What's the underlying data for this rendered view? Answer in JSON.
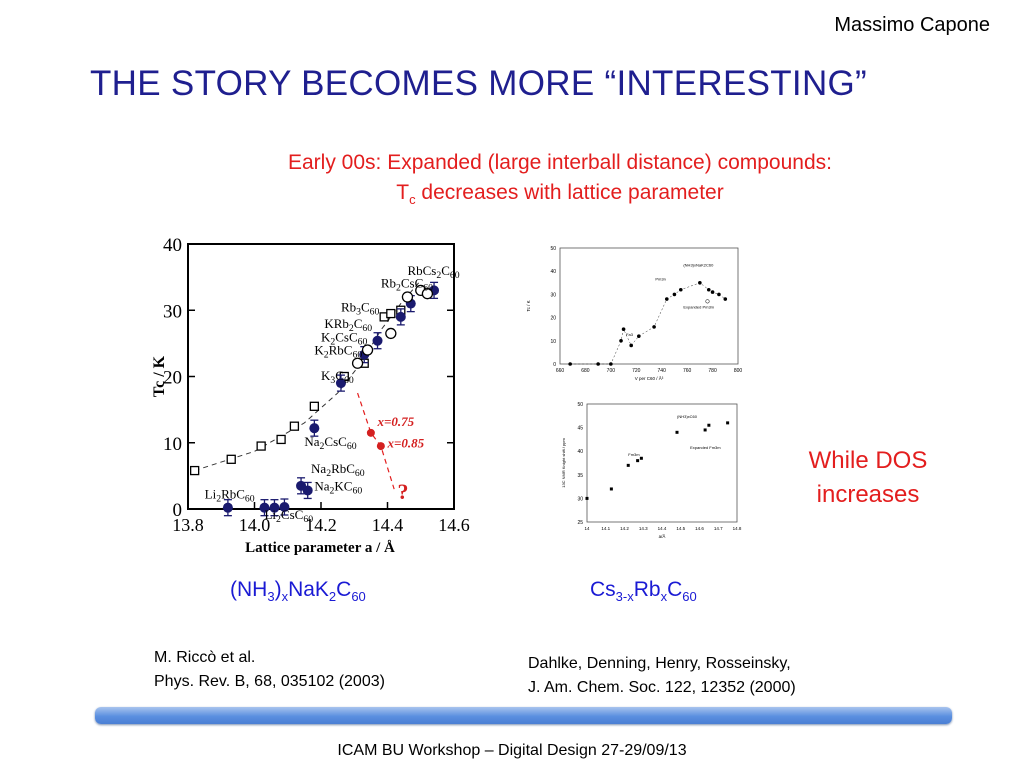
{
  "header": {
    "author": "Massimo Capone",
    "title": "THE STORY BECOMES MORE “INTERESTING”",
    "subtitle_line1": "Early 00s: Expanded (large interball distance) compounds:",
    "subtitle_tc": "T",
    "subtitle_tc_sub": "c",
    "subtitle_rest": " decreases with lattice parameter"
  },
  "side_note": {
    "line1": "While DOS",
    "line2": "increases"
  },
  "formulas": {
    "left": {
      "p1": "(NH",
      "s1": "3",
      "p2": ")",
      "s2": "x",
      "p3": "NaK",
      "s3": "2",
      "p4": "C",
      "s4": "60"
    },
    "right": {
      "p1": "Cs",
      "s1": "3-x",
      "p2": "Rb",
      "s2": "x",
      "p3": "C",
      "s3": "60"
    }
  },
  "references": {
    "left": {
      "line1": "M. Riccò et al.",
      "line2": "Phys. Rev. B, 68, 035102 (2003)"
    },
    "right": {
      "line1": "Dahlke, Denning, Henry, Rosseinsky,",
      "line2": "J. Am. Chem. Soc. 122, 12352 (2000)"
    }
  },
  "footer": {
    "text": "ICAM BU Workshop – Digital Design 27-29/09/13"
  },
  "colors": {
    "title": "#1f1f8f",
    "accent_red": "#e31e1e",
    "formula_blue": "#1a1ad4",
    "marker_navy": "#1a1a6e"
  },
  "chart_data": [
    {
      "type": "scatter",
      "title": "",
      "xlabel": "Lattice parameter  a / Å",
      "ylabel": "Tc / K",
      "xlim": [
        13.8,
        14.6
      ],
      "ylim": [
        0,
        40
      ],
      "xticks": [
        "13.8",
        "14.0",
        "14.2",
        "14.4",
        "14.6"
      ],
      "yticks": [
        "0",
        "10",
        "20",
        "30",
        "40"
      ],
      "grid": false,
      "series": [
        {
          "marker": "open-square",
          "points": [
            [
              13.82,
              5.8
            ],
            [
              13.93,
              7.5
            ],
            [
              14.02,
              9.5
            ],
            [
              14.08,
              10.5
            ],
            [
              14.12,
              12.5
            ],
            [
              14.18,
              15.5
            ],
            [
              14.27,
              20
            ],
            [
              14.33,
              22
            ],
            [
              14.39,
              29
            ],
            [
              14.41,
              29.5
            ],
            [
              14.44,
              30
            ]
          ]
        },
        {
          "marker": "navy-filled-circle-errorbar",
          "points": [
            [
              13.92,
              0.2
            ],
            [
              14.03,
              0.2
            ],
            [
              14.06,
              0.2
            ],
            [
              14.09,
              0.3
            ],
            [
              14.14,
              3.5
            ],
            [
              14.16,
              2.8
            ],
            [
              14.18,
              12.2
            ],
            [
              14.26,
              19
            ],
            [
              14.33,
              23.3
            ],
            [
              14.37,
              25.4
            ],
            [
              14.44,
              29
            ],
            [
              14.47,
              31
            ],
            [
              14.54,
              33
            ]
          ]
        },
        {
          "marker": "open-circle",
          "points": [
            [
              14.31,
              22
            ],
            [
              14.34,
              24
            ],
            [
              14.41,
              26.5
            ],
            [
              14.46,
              32
            ],
            [
              14.5,
              33
            ],
            [
              14.52,
              32.5
            ]
          ]
        },
        {
          "marker": "red-filled-circle",
          "points": [
            [
              14.35,
              11.5
            ],
            [
              14.38,
              9.5
            ]
          ]
        }
      ],
      "annotations": [
        {
          "text": "Li2RbC60",
          "x": 13.85,
          "y": 1.6
        },
        {
          "text": "Li2CsC60",
          "x": 14.03,
          "y": -1.5
        },
        {
          "text": "Na2KC60",
          "x": 14.18,
          "y": 2.8
        },
        {
          "text": "Na2RbC60",
          "x": 14.17,
          "y": 5.4
        },
        {
          "text": "Na2CsC60",
          "x": 14.15,
          "y": 9.5
        },
        {
          "text": "K3C60",
          "x": 14.2,
          "y": 19.5
        },
        {
          "text": "K2RbC60",
          "x": 14.18,
          "y": 23.3
        },
        {
          "text": "K2CsC60",
          "x": 14.2,
          "y": 25.3
        },
        {
          "text": "KRb2C60",
          "x": 14.21,
          "y": 27.3
        },
        {
          "text": "Rb3C60",
          "x": 14.26,
          "y": 29.8
        },
        {
          "text": "Rb2CsC60",
          "x": 14.38,
          "y": 33.4
        },
        {
          "text": "RbCs2C60",
          "x": 14.46,
          "y": 35.3
        },
        {
          "text": "x=0.75",
          "x": 14.37,
          "y": 12.5
        },
        {
          "text": "x=0.85",
          "x": 14.4,
          "y": 9.3
        },
        {
          "text": "?",
          "x": 14.43,
          "y": 1.5
        }
      ]
    },
    {
      "type": "scatter",
      "title": "",
      "xlabel": "V per C60 / Å³",
      "ylabel": "Tc / K",
      "xlim": [
        660,
        800
      ],
      "ylim": [
        0,
        50
      ],
      "xticks": [
        "660",
        "680",
        "700",
        "720",
        "740",
        "760",
        "780",
        "800"
      ],
      "yticks": [
        "0",
        "10",
        "20",
        "30",
        "40",
        "50"
      ],
      "series": [
        {
          "marker": "filled-circle",
          "points": [
            [
              668,
              0
            ],
            [
              690,
              0
            ],
            [
              700,
              0
            ],
            [
              708,
              10
            ],
            [
              710,
              15
            ],
            [
              716,
              8
            ],
            [
              722,
              12
            ],
            [
              734,
              16
            ],
            [
              744,
              28
            ],
            [
              750,
              30
            ],
            [
              755,
              32
            ],
            [
              770,
              35
            ],
            [
              777,
              32
            ],
            [
              780,
              31
            ],
            [
              785,
              30
            ],
            [
              790,
              28
            ]
          ]
        },
        {
          "marker": "open-circle",
          "points": [
            [
              776,
              27
            ]
          ]
        }
      ],
      "annotations": [
        {
          "text": "Pm3n"
        },
        {
          "text": "Fa3"
        },
        {
          "text": "Expanded Pm3m"
        },
        {
          "text": "(NH3)xNaK2C60"
        }
      ]
    },
    {
      "type": "scatter",
      "title": "",
      "xlabel": "a/Å",
      "ylabel": "13C NMR Knight shift / ppm",
      "xlim": [
        14.0,
        14.8
      ],
      "ylim": [
        25,
        50
      ],
      "xticks": [
        "14",
        "14.1",
        "14.2",
        "14.3",
        "14.4",
        "14.5",
        "14.6",
        "14.7",
        "14.8"
      ],
      "yticks": [
        "25",
        "30",
        "35",
        "40",
        "45",
        "50"
      ],
      "series": [
        {
          "marker": "filled-square",
          "points": [
            [
              14.0,
              30
            ],
            [
              14.13,
              32
            ],
            [
              14.22,
              37
            ],
            [
              14.27,
              38
            ],
            [
              14.29,
              38.5
            ],
            [
              14.48,
              44
            ],
            [
              14.63,
              44.5
            ],
            [
              14.65,
              45.5
            ],
            [
              14.75,
              46
            ]
          ]
        }
      ],
      "annotations": [
        {
          "text": "Fm3m"
        },
        {
          "text": "(NH3)xC60"
        },
        {
          "text": "Expanded Fm3m"
        }
      ]
    }
  ]
}
